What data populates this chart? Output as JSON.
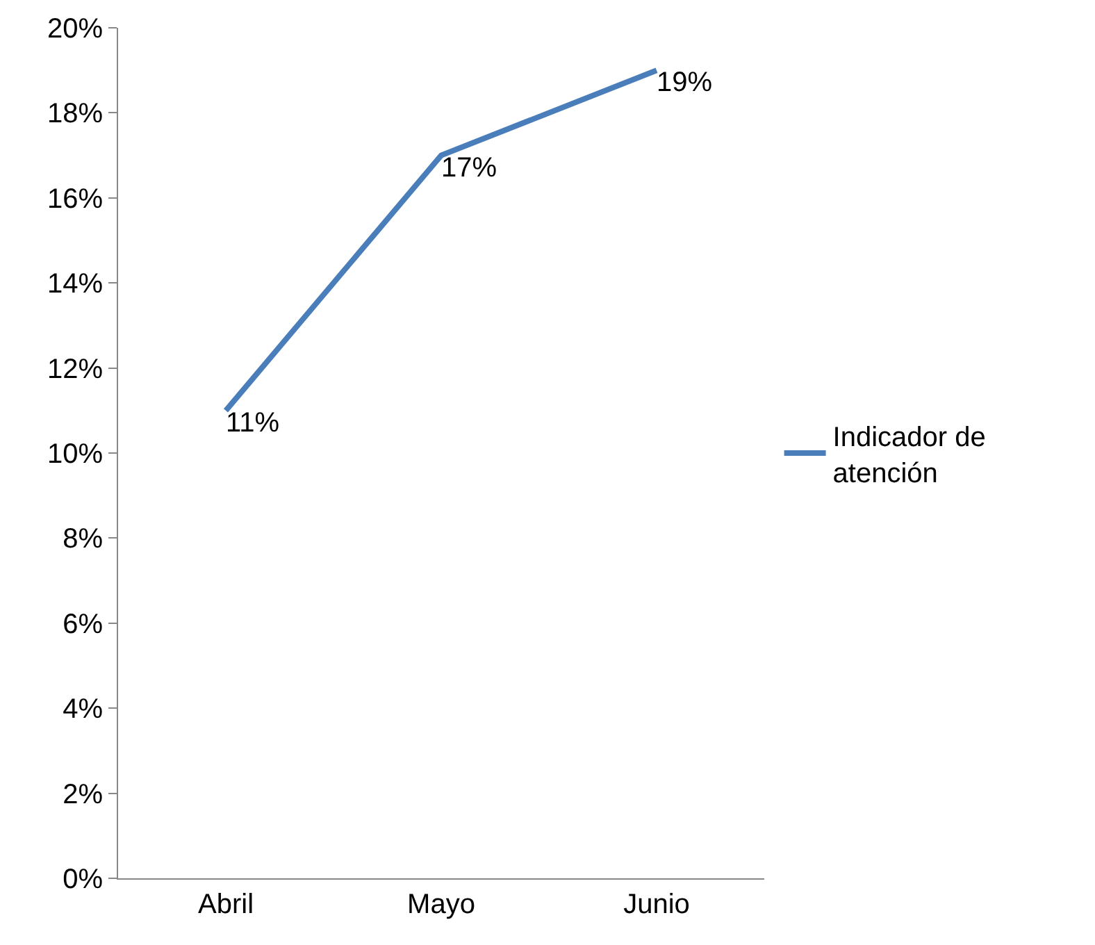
{
  "chart_data": {
    "type": "line",
    "categories": [
      "Abril",
      "Mayo",
      "Junio"
    ],
    "series": [
      {
        "name": "Indicador de atención",
        "color": "#4a7ebb",
        "values": [
          11,
          17,
          19
        ],
        "value_labels": [
          "11%",
          "17%",
          "19%"
        ]
      }
    ],
    "ylim": [
      0,
      20
    ],
    "yticks": [
      {
        "value": 0,
        "label": "0%"
      },
      {
        "value": 2,
        "label": "2%"
      },
      {
        "value": 4,
        "label": "4%"
      },
      {
        "value": 6,
        "label": "6%"
      },
      {
        "value": 8,
        "label": "8%"
      },
      {
        "value": 10,
        "label": "10%"
      },
      {
        "value": 12,
        "label": "12%"
      },
      {
        "value": 14,
        "label": "14%"
      },
      {
        "value": 16,
        "label": "16%"
      },
      {
        "value": 18,
        "label": "18%"
      },
      {
        "value": 20,
        "label": "20%"
      }
    ],
    "grid": false,
    "legend": "right",
    "marker": "none",
    "line_style": "solid"
  }
}
